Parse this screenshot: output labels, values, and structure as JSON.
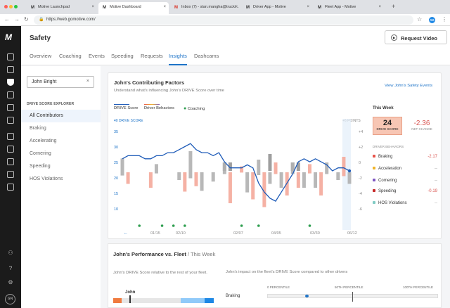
{
  "browser": {
    "tabs": [
      {
        "label": "Motive Launchpad",
        "icon": "motive-logo-icon",
        "active": false
      },
      {
        "label": "Motive Dashboard",
        "icon": "motive-logo-icon",
        "active": true
      },
      {
        "label": "Inbox (7) - stan.mangha@trucki...",
        "icon": "gmail-icon",
        "active": false
      },
      {
        "label": "Driver App - Motive",
        "icon": "motive-logo-icon",
        "active": false
      },
      {
        "label": "Fleet App - Motive",
        "icon": "motive-logo-icon",
        "active": false
      }
    ],
    "new_tab": "+",
    "url": "https://web.gomotive.com/",
    "profile_initials": "AK"
  },
  "rail": {
    "logo": "M",
    "user_initials": "GN"
  },
  "header": {
    "title": "Safety",
    "request_video": "Request Video",
    "tabs": [
      "Overview",
      "Coaching",
      "Events",
      "Speeding",
      "Requests",
      "Insights",
      "Dashcams"
    ],
    "active_tab": "Insights"
  },
  "left_panel": {
    "search_value": "John Bright",
    "explorer_title": "DRIVE SCORE EXPLORER",
    "items": [
      "All Contributors",
      "Braking",
      "Accelerating",
      "Cornering",
      "Speeding",
      "HOS Violations"
    ],
    "active_item": "All Contributors"
  },
  "factors": {
    "title": "John's Contributing Factors",
    "subtitle": "Understand what's influencing John's DRIVE Score over time",
    "link": "View John's Safety Events",
    "legend": {
      "drive_score": "DRIVE Score",
      "behaviors": "Driver Behaviors",
      "coaching": "Coaching"
    },
    "this_week": {
      "title": "This Week",
      "score": "24",
      "score_label": "DRIVE SCORE",
      "change": "-2.36",
      "change_label": "NET CHANGE",
      "behaviors_header": "DRIVER BEHAVIORS",
      "behaviors": [
        {
          "name": "Braking",
          "value": "-2.17",
          "color": "#e8534a"
        },
        {
          "name": "Acceleration",
          "value": "--",
          "color": "#f0b429"
        },
        {
          "name": "Cornering",
          "value": "--",
          "color": "#7e57c2"
        },
        {
          "name": "Speeding",
          "value": "-0.19",
          "color": "#c62828"
        },
        {
          "name": "HOS Violations",
          "value": "--",
          "color": "#80cbc4"
        }
      ]
    },
    "colors": {
      "line": "#1e5bb8",
      "coaching": "#2e9e4f",
      "positive": "#9e9e9e",
      "negative": "#f4a89a"
    }
  },
  "chart_data": {
    "type": "line",
    "ylabel": "40 DRIVE SCORE",
    "y2label": "+6 POINTS",
    "y_ticks": [
      "35",
      "30",
      "25",
      "20",
      "15",
      "10"
    ],
    "y2_ticks": [
      "+4",
      "+2",
      "0",
      "-2",
      "-4",
      "-6"
    ],
    "x_ticks": [
      "01/15",
      "02/10",
      "02/07",
      "04/05",
      "03/30",
      "06/12"
    ],
    "ylim": [
      8,
      40
    ],
    "series": [
      {
        "name": "DRIVE Score",
        "values": [
          28,
          29,
          29,
          29,
          28,
          28,
          29,
          29,
          30,
          30,
          31,
          32,
          33,
          31,
          30,
          30,
          29,
          30,
          27,
          25,
          25,
          25,
          26,
          25,
          20,
          17,
          15,
          14,
          17,
          20,
          23,
          27,
          28,
          27,
          28,
          27,
          26,
          24,
          25,
          25,
          24
        ]
      }
    ],
    "behavior_bars": [
      [
        0,
        2.2
      ],
      [
        0,
        1.5
      ],
      [
        0,
        0
      ],
      [
        0,
        0
      ],
      [
        0,
        0
      ],
      [
        0,
        2
      ],
      [
        0,
        1.2
      ],
      [
        0,
        0
      ],
      [
        0,
        0
      ],
      [
        0,
        0
      ],
      [
        0,
        1
      ],
      [
        0,
        2.5
      ],
      [
        0,
        3.5
      ],
      [
        0,
        1.8
      ],
      [
        0,
        2.4
      ],
      [
        0,
        0
      ],
      [
        0,
        1.2
      ],
      [
        0,
        0
      ],
      [
        1,
        1.5
      ],
      [
        1,
        4
      ],
      [
        0,
        0
      ],
      [
        0,
        0.8
      ],
      [
        0,
        2.6
      ],
      [
        0,
        3.5
      ],
      [
        0,
        2
      ],
      [
        0,
        4.5
      ],
      [
        2,
        1.5
      ],
      [
        0,
        1.5
      ],
      [
        0,
        2
      ],
      [
        0,
        3
      ],
      [
        1,
        1.5
      ],
      [
        1,
        2
      ],
      [
        0,
        2
      ],
      [
        0,
        1.2
      ],
      [
        0,
        2
      ],
      [
        0,
        3
      ],
      [
        0,
        1.5
      ],
      [
        0,
        0
      ],
      [
        0,
        1
      ],
      [
        0,
        2.5
      ],
      [
        0,
        1.5
      ]
    ],
    "coaching_points": [
      3,
      7,
      9,
      11,
      21,
      24,
      33
    ],
    "grid": false
  },
  "performance": {
    "title": "John's Performance vs. Fleet",
    "title_suffix": "/ This Week",
    "left_desc": "John's DRIVE Score relative to the rest of your fleet.",
    "right_desc": "John's impact on the fleet's DRIVE Score compared to other drivers",
    "driver": "John",
    "percentiles": [
      "0 PERCENTILE",
      "50TH PERCENTILE",
      "100TH PERCENTILE"
    ],
    "row_label": "Braking"
  }
}
